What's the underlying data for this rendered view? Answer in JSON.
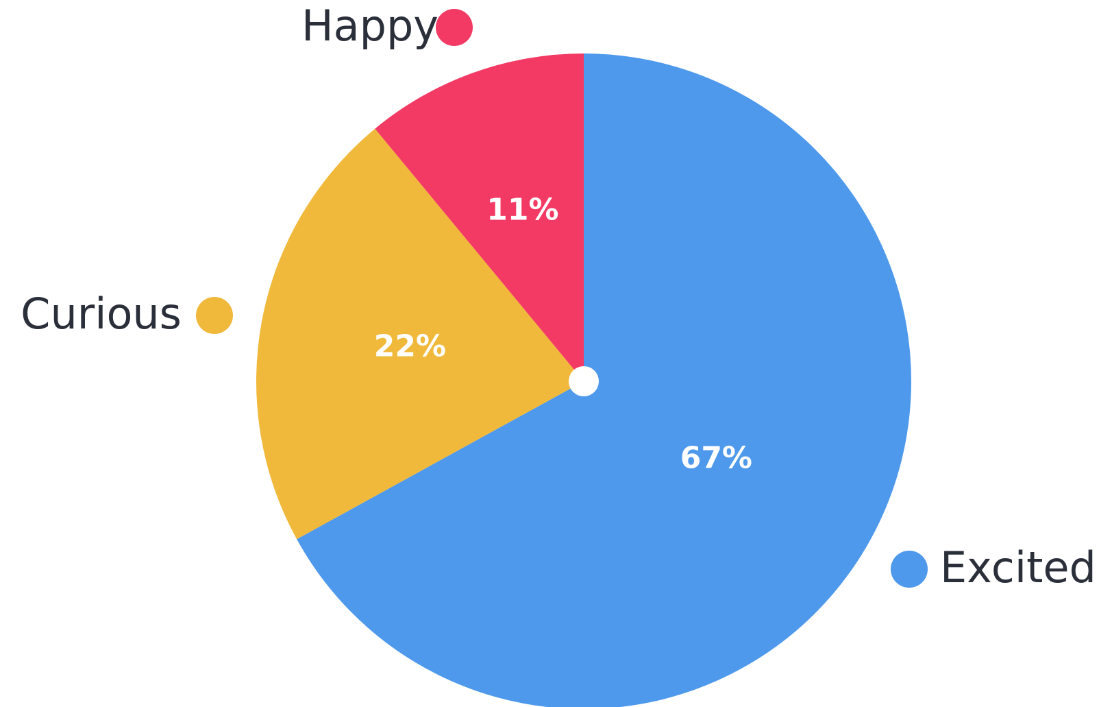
{
  "chart_data": {
    "type": "pie",
    "categories": [
      "Excited",
      "Curious",
      "Happy"
    ],
    "values": [
      67,
      22,
      11
    ],
    "value_labels": [
      "67%",
      "22%",
      "11%"
    ],
    "colors": [
      "#4e99ec",
      "#f0b93b",
      "#f23a64"
    ],
    "legend": {
      "entries": [
        {
          "name": "Happy",
          "color": "#f23a64"
        },
        {
          "name": "Curious",
          "color": "#f0b93b"
        },
        {
          "name": "Excited",
          "color": "#4e99ec"
        }
      ]
    },
    "start_angle_deg": 0,
    "direction": "clockwise",
    "center_dot_color": "#ffffff"
  }
}
